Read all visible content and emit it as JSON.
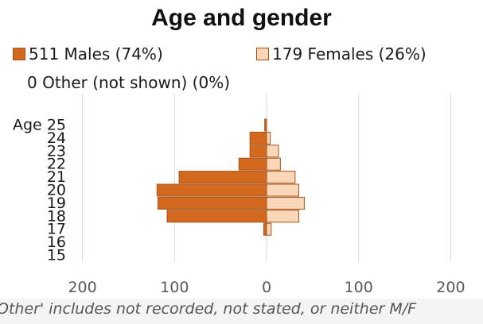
{
  "chart_data": {
    "type": "bar",
    "orientation": "horizontal",
    "title": "Age and gender",
    "y_label": "Age",
    "categories": [
      "25",
      "24",
      "23",
      "22",
      "21",
      "20",
      "19",
      "18",
      "17",
      "16",
      "15"
    ],
    "series": [
      {
        "name": "511 Males (74%)",
        "color": "#d2691e",
        "values": [
          2,
          18,
          18,
          30,
          95,
          119,
          118,
          108,
          3,
          0,
          0
        ]
      },
      {
        "name": "179 Females (26%)",
        "color": "#f9d7b8",
        "values": [
          0,
          4,
          13,
          15,
          31,
          35,
          41,
          35,
          5,
          0,
          0
        ]
      }
    ],
    "legend_other": "0 Other (not shown) (0%)",
    "x_ticks": [
      "200",
      "100",
      "0",
      "100",
      "200"
    ],
    "xlim": [
      -200,
      200
    ],
    "grid": true,
    "footnote": "Other' includes not recorded, not stated, or neither M/F"
  }
}
